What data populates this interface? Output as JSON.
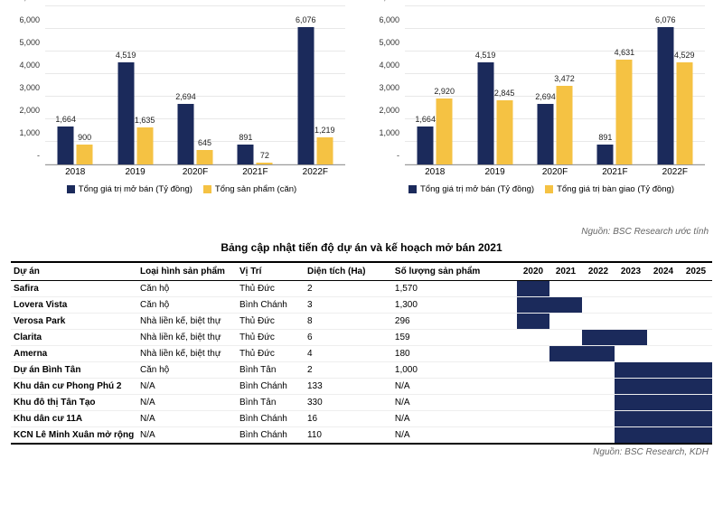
{
  "colors": {
    "navy": "#1b2a5b",
    "yellow": "#f5c243",
    "grid": "#e8e8e8"
  },
  "chart1": {
    "ymax": 7000,
    "ystep": 1000,
    "cats": [
      "2018",
      "2019",
      "2020F",
      "2021F",
      "2022F"
    ],
    "series": [
      {
        "name": "Tổng giá trị mở bán (Tỷ đồng)",
        "color": "#1b2a5b",
        "vals": [
          1664,
          4519,
          2694,
          891,
          6076
        ]
      },
      {
        "name": "Tổng sản phẩm (căn)",
        "color": "#f5c243",
        "vals": [
          900,
          1635,
          645,
          72,
          1219
        ]
      }
    ]
  },
  "chart2": {
    "ymax": 7000,
    "ystep": 1000,
    "cats": [
      "2018",
      "2019",
      "2020F",
      "2021F",
      "2022F"
    ],
    "series": [
      {
        "name": "Tổng giá trị mở bán (Tỷ đồng)",
        "color": "#1b2a5b",
        "vals": [
          1664,
          4519,
          2694,
          891,
          6076
        ]
      },
      {
        "name": "Tổng giá trị bàn giao (Tỷ đồng)",
        "color": "#f5c243",
        "vals": [
          2920,
          2845,
          3472,
          4631,
          4529
        ]
      }
    ]
  },
  "source1": "Nguồn: BSC Research ước tính",
  "source2": "Nguồn: BSC Research, KDH",
  "table": {
    "title": "Bảng cập nhật tiến độ dự án và kế hoạch mở bán 2021",
    "cols": [
      "Dự án",
      "Loại hình sản phẩm",
      "Vị Trí",
      "Diện tích (Ha)",
      "Số lượng sản phẩm",
      "2020",
      "2021",
      "2022",
      "2023",
      "2024",
      "2025"
    ],
    "rows": [
      {
        "c": [
          "Safira",
          "Căn hộ",
          "Thủ Đức",
          "2",
          "1,570"
        ],
        "g": [
          1,
          0,
          0,
          0,
          0,
          0
        ]
      },
      {
        "c": [
          "Lovera Vista",
          "Căn hộ",
          "Bình Chánh",
          "3",
          "1,300"
        ],
        "g": [
          1,
          1,
          0,
          0,
          0,
          0
        ]
      },
      {
        "c": [
          "Verosa Park",
          "Nhà liền kế, biệt thự",
          "Thủ Đức",
          "8",
          "296"
        ],
        "g": [
          1,
          0,
          0,
          0,
          0,
          0
        ]
      },
      {
        "c": [
          "Clarita",
          "Nhà liền kế, biệt thự",
          "Thủ Đức",
          "6",
          "159"
        ],
        "g": [
          0,
          0,
          1,
          1,
          0,
          0
        ]
      },
      {
        "c": [
          "Amerna",
          "Nhà liền kế, biệt thự",
          "Thủ Đức",
          "4",
          "180"
        ],
        "g": [
          0,
          1,
          1,
          0,
          0,
          0
        ]
      },
      {
        "c": [
          "Dự án Bình Tân",
          "Căn hộ",
          "Bình Tân",
          "2",
          "1,000"
        ],
        "g": [
          0,
          0,
          0,
          1,
          1,
          1
        ]
      },
      {
        "c": [
          "Khu dân cư Phong Phú 2",
          "N/A",
          "Bình Chánh",
          "133",
          "N/A"
        ],
        "g": [
          0,
          0,
          0,
          1,
          1,
          1
        ]
      },
      {
        "c": [
          "Khu đô thị Tân Tạo",
          "N/A",
          "Bình Tân",
          "330",
          "N/A"
        ],
        "g": [
          0,
          0,
          0,
          1,
          1,
          1
        ]
      },
      {
        "c": [
          "Khu dân cư 11A",
          "N/A",
          "Bình Chánh",
          "16",
          "N/A"
        ],
        "g": [
          0,
          0,
          0,
          1,
          1,
          1
        ]
      },
      {
        "c": [
          "KCN Lê Minh Xuân mở rộng",
          "N/A",
          "Bình Chánh",
          "110",
          "N/A"
        ],
        "g": [
          0,
          0,
          0,
          1,
          1,
          1
        ]
      }
    ]
  }
}
